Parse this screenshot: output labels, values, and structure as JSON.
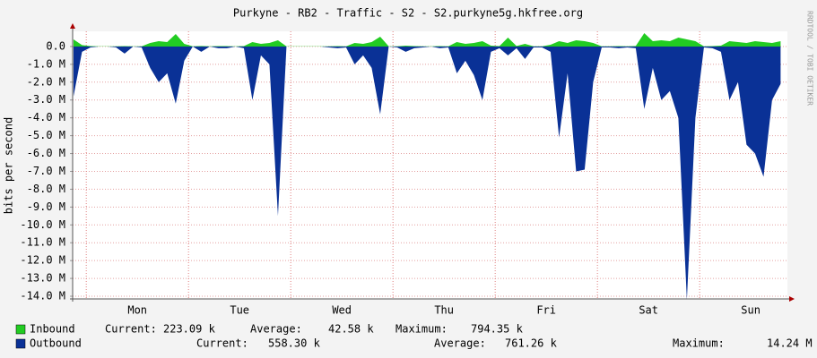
{
  "chart_data": {
    "type": "area",
    "title": "Purkyne - RB2 - Traffic - S2 - S2.purkyne5g.hkfree.org",
    "y_label": "bits per second",
    "watermark": "RRDTOOL / TOBI OETIKER",
    "xlim": [
      -3.2,
      164.6
    ],
    "xticks": [
      {
        "value": 12,
        "label": "Mon"
      },
      {
        "value": 36,
        "label": "Tue"
      },
      {
        "value": 60,
        "label": "Wed"
      },
      {
        "value": 84,
        "label": "Thu"
      },
      {
        "value": 108,
        "label": "Fri"
      },
      {
        "value": 132,
        "label": "Sat"
      },
      {
        "value": 156,
        "label": "Sun"
      }
    ],
    "xgrid": [
      0,
      24,
      48,
      72,
      96,
      120,
      144
    ],
    "ylim": [
      -14150000,
      850000
    ],
    "yticks": [
      {
        "value": 0,
        "label": "0.0"
      },
      {
        "value": -1000000,
        "label": "-1.0 M"
      },
      {
        "value": -2000000,
        "label": "-2.0 M"
      },
      {
        "value": -3000000,
        "label": "-3.0 M"
      },
      {
        "value": -4000000,
        "label": "-4.0 M"
      },
      {
        "value": -5000000,
        "label": "-5.0 M"
      },
      {
        "value": -6000000,
        "label": "-6.0 M"
      },
      {
        "value": -7000000,
        "label": "-7.0 M"
      },
      {
        "value": -8000000,
        "label": "-8.0 M"
      },
      {
        "value": -9000000,
        "label": "-9.0 M"
      },
      {
        "value": -10000000,
        "label": "-10.0 M"
      },
      {
        "value": -11000000,
        "label": "-11.0 M"
      },
      {
        "value": -12000000,
        "label": "-12.0 M"
      },
      {
        "value": -13000000,
        "label": "-13.0 M"
      },
      {
        "value": -14000000,
        "label": "-14.0 M"
      }
    ],
    "grid": true,
    "x": [
      -3,
      -1,
      1,
      3,
      5,
      7,
      9,
      11,
      13,
      15,
      17,
      19,
      21,
      23,
      25,
      27,
      29,
      31,
      33,
      35,
      37,
      39,
      41,
      43,
      45,
      47,
      49,
      51,
      53,
      55,
      57,
      59,
      61,
      63,
      65,
      67,
      69,
      71,
      73,
      75,
      77,
      79,
      81,
      83,
      85,
      87,
      89,
      91,
      93,
      95,
      97,
      99,
      101,
      103,
      105,
      107,
      109,
      111,
      113,
      115,
      117,
      119,
      121,
      123,
      125,
      127,
      129,
      131,
      133,
      135,
      137,
      139,
      141,
      143,
      145,
      147,
      149,
      151,
      153,
      155,
      157,
      159,
      161,
      163
    ],
    "series": [
      {
        "name": "Inbound",
        "color": "#22cc22",
        "values": [
          400000,
          80000,
          20000,
          10000,
          10000,
          10000,
          20000,
          10000,
          10000,
          200000,
          300000,
          250000,
          700000,
          150000,
          10000,
          30000,
          10000,
          20000,
          20000,
          10000,
          20000,
          250000,
          150000,
          200000,
          350000,
          10000,
          10000,
          10000,
          10000,
          10000,
          10000,
          20000,
          10000,
          200000,
          150000,
          250000,
          550000,
          10000,
          10000,
          50000,
          20000,
          10000,
          10000,
          20000,
          10000,
          250000,
          150000,
          200000,
          300000,
          50000,
          20000,
          500000,
          30000,
          150000,
          10000,
          10000,
          100000,
          300000,
          200000,
          350000,
          300000,
          200000,
          10000,
          10000,
          20000,
          10000,
          30000,
          750000,
          300000,
          350000,
          300000,
          500000,
          400000,
          300000,
          10000,
          20000,
          50000,
          300000,
          250000,
          200000,
          300000,
          250000,
          200000,
          300000
        ],
        "stats": [
          {
            "label": "Current:",
            "value": "223.09 k"
          },
          {
            "label": "Average:",
            "value": "42.58 k"
          },
          {
            "label": "Maximum:",
            "value": "794.35 k"
          }
        ]
      },
      {
        "name": "Outbound",
        "color": "#0a3196",
        "values": [
          -2800000,
          -300000,
          -50000,
          0,
          0,
          -50000,
          -400000,
          0,
          -50000,
          -1200000,
          -2000000,
          -1500000,
          -3200000,
          -800000,
          0,
          -300000,
          0,
          -100000,
          -100000,
          0,
          -100000,
          -3000000,
          -500000,
          -1000000,
          -9500000,
          0,
          0,
          0,
          0,
          0,
          -50000,
          -100000,
          -50000,
          -1000000,
          -500000,
          -1200000,
          -3800000,
          0,
          -50000,
          -300000,
          -100000,
          -50000,
          0,
          -100000,
          -50000,
          -1500000,
          -800000,
          -1600000,
          -3000000,
          -300000,
          -100000,
          -500000,
          -100000,
          -700000,
          -50000,
          -50000,
          -300000,
          -5100000,
          -1500000,
          -7000000,
          -6900000,
          -2000000,
          -50000,
          -50000,
          -100000,
          -50000,
          -100000,
          -3500000,
          -1200000,
          -3000000,
          -2500000,
          -4000000,
          -14200000,
          -4000000,
          -50000,
          -100000,
          -300000,
          -3000000,
          -2000000,
          -5500000,
          -6000000,
          -7300000,
          -3000000,
          -2100000
        ],
        "stats": [
          {
            "label": "Current:",
            "value": "558.30 k"
          },
          {
            "label": "Average:",
            "value": "761.26 k"
          },
          {
            "label": "Maximum:",
            "value": "14.24 M"
          }
        ]
      }
    ]
  }
}
